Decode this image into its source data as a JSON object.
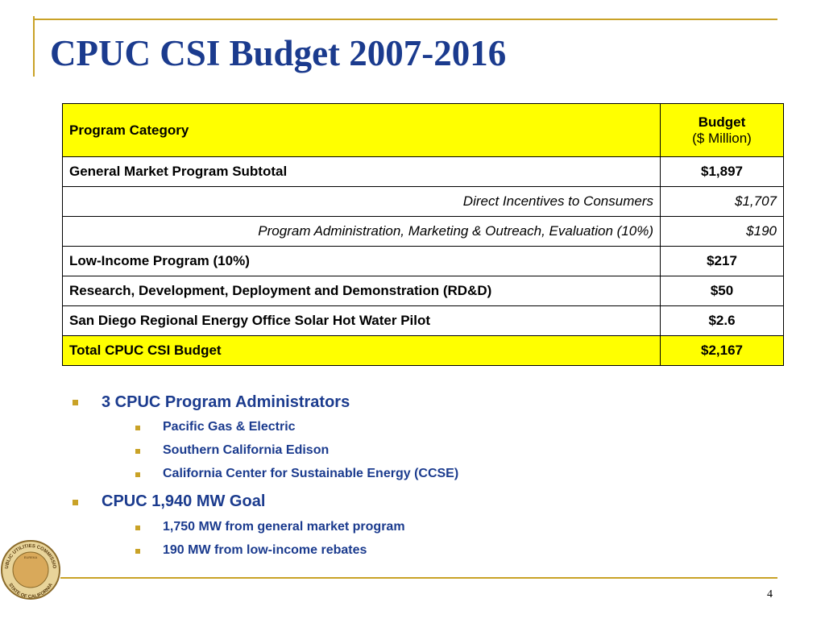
{
  "title": "CPUC CSI Budget 2007-2016",
  "table": {
    "header": {
      "category": "Program Category",
      "budget": "Budget",
      "unit": "($ Million)"
    },
    "rows": [
      [
        "General Market Program Subtotal",
        "$1,897"
      ],
      [
        "Direct Incentives to Consumers",
        "$1,707"
      ],
      [
        "Program Administration, Marketing & Outreach, Evaluation (10%)",
        "$190"
      ],
      [
        "Low-Income Program (10%)",
        "$217"
      ],
      [
        "Research, Development, Deployment and Demonstration (RD&D)",
        "$50"
      ],
      [
        "San Diego Regional Energy Office Solar Hot Water Pilot",
        "$2.6"
      ],
      [
        "Total CPUC CSI Budget",
        "$2,167"
      ]
    ]
  },
  "bullets": [
    {
      "text": "3 CPUC Program Administrators",
      "items": [
        "Pacific Gas & Electric",
        "Southern California Edison",
        "California Center for Sustainable Energy (CCSE)"
      ]
    },
    {
      "text": "CPUC 1,940 MW Goal",
      "items": [
        "1,750 MW from general market program",
        "190 MW from low-income rebates"
      ]
    }
  ],
  "seal": {
    "top": "PUBLIC UTILITIES COMMISSION",
    "bottom": "STATE OF CALIFORNIA",
    "motto": "EUREKA"
  },
  "page_number": "4"
}
